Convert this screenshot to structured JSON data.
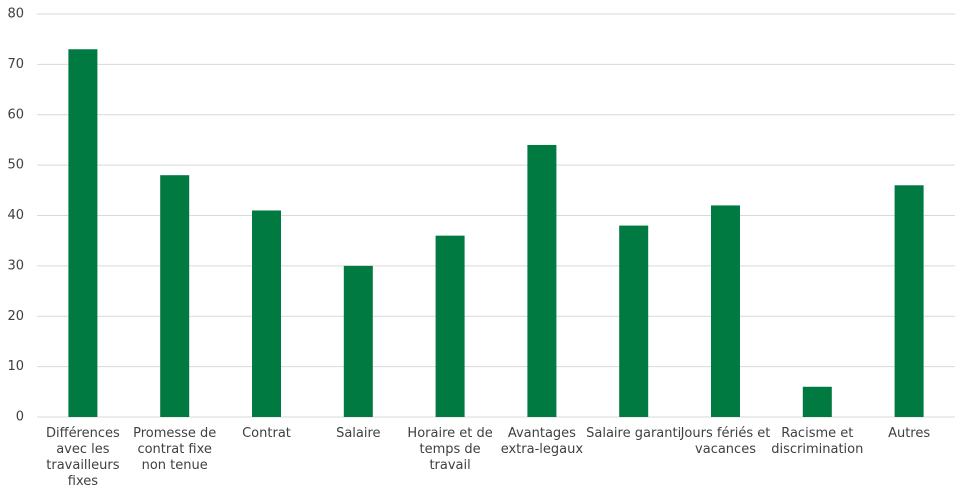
{
  "chart_data": {
    "type": "bar",
    "categories": [
      "Différences avec les travailleurs fixes",
      "Promesse de contrat fixe non tenue",
      "Contrat",
      "Salaire",
      "Horaire et de temps de travail",
      "Avantages extra-legaux",
      "Salaire garanti",
      "Jours fériés et vacances",
      "Racisme et discrimination",
      "Autres"
    ],
    "values": [
      73,
      48,
      41,
      30,
      36,
      54,
      38,
      42,
      6,
      46
    ],
    "color": "#007a40",
    "ylim": [
      0,
      80
    ],
    "yticks": [
      0,
      10,
      20,
      30,
      40,
      50,
      60,
      70,
      80
    ],
    "grid": true
  }
}
